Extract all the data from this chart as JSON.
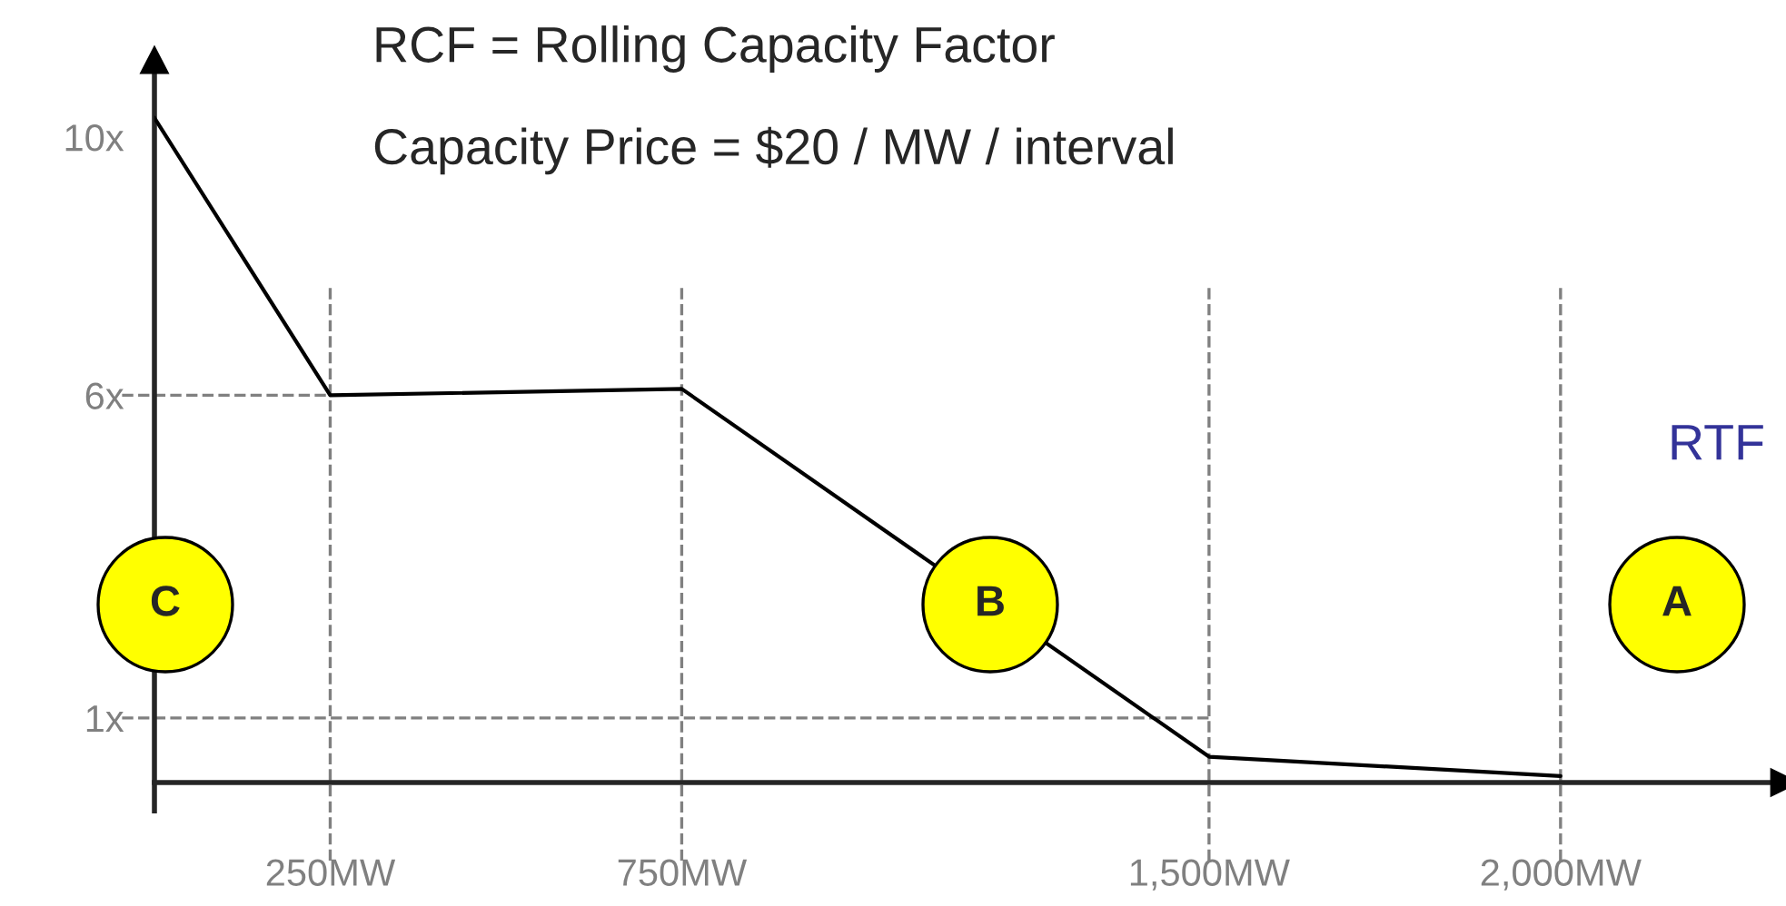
{
  "chart_data": {
    "type": "line",
    "x": [
      0,
      250,
      750,
      1500,
      2000
    ],
    "series": [
      {
        "color": "#000000",
        "values": [
          10.3,
          6,
          6.1,
          0.4,
          0.1
        ]
      }
    ],
    "xlim": [
      0,
      2300
    ],
    "ylim": [
      0,
      11
    ],
    "xticks": [
      {
        "value": 250,
        "label": "250MW"
      },
      {
        "value": 750,
        "label": "750MW"
      },
      {
        "value": 1500,
        "label": "1,500MW"
      },
      {
        "value": 2000,
        "label": "2,000MW"
      }
    ],
    "yticks": [
      {
        "value": 1,
        "label": "1x"
      },
      {
        "value": 6,
        "label": "6x"
      },
      {
        "value": 10,
        "label": "10x"
      }
    ],
    "ref_lines": [
      {
        "axis": "x",
        "value": 250,
        "color": "#808080",
        "line_style": "dashed"
      },
      {
        "axis": "x",
        "value": 750,
        "color": "#808080",
        "line_style": "dashed"
      },
      {
        "axis": "x",
        "value": 1500,
        "color": "#808080",
        "line_style": "dashed"
      },
      {
        "axis": "x",
        "value": 2000,
        "color": "#808080",
        "line_style": "dashed"
      },
      {
        "axis": "y",
        "value": 6,
        "color": "#808080",
        "line_style": "dashed"
      },
      {
        "axis": "y",
        "value": 1,
        "color": "#808080",
        "line_style": "dashed"
      }
    ],
    "annotations": [
      "RCF = Rolling Capacity Factor",
      "Capacity Price = $20 / MW / interval",
      "C",
      "B",
      "A",
      "RTF"
    ],
    "grid": false,
    "legend": false,
    "marker": "none",
    "line_style": "solid"
  }
}
